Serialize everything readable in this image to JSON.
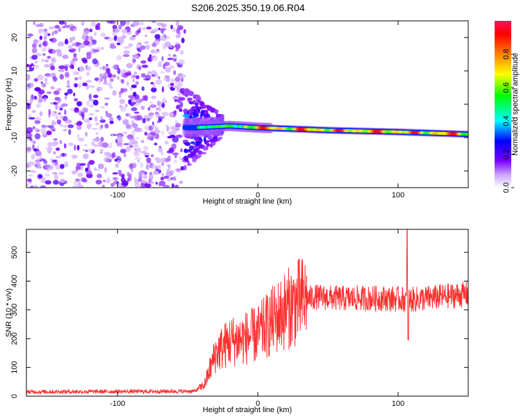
{
  "title": "S206.2025.350.19.06.R04",
  "chart_data": [
    {
      "type": "heatmap",
      "name": "spectrogram",
      "xlabel": "Height of straight line (km)",
      "ylabel": "Frequency (Hz)",
      "xlim": [
        -165,
        150
      ],
      "ylim": [
        -25,
        25
      ],
      "xticks": [
        -100,
        0,
        100
      ],
      "yticks": [
        -20,
        -10,
        0,
        10,
        20
      ],
      "xtick_labels": [
        "-100",
        "0",
        "100"
      ],
      "ytick_labels": [
        "-20",
        "-10",
        "0",
        "10",
        "20"
      ],
      "noise_region_x": [
        -165,
        -52
      ],
      "transition_region_x": [
        -52,
        -25
      ],
      "carrier_line": [
        {
          "x": -45,
          "f": -7.0
        },
        {
          "x": -20,
          "f": -6.5
        },
        {
          "x": 0,
          "f": -7.0
        },
        {
          "x": 50,
          "f": -7.8
        },
        {
          "x": 100,
          "f": -8.3
        },
        {
          "x": 150,
          "f": -9.0
        }
      ],
      "colorbar": {
        "label": "Normalized spectral amplitude",
        "range": [
          0,
          1
        ],
        "ticks": [
          0.0,
          0.2,
          0.4,
          0.6,
          0.8
        ],
        "tick_labels": [
          "0.0",
          "0.2",
          "0.4",
          "0.6",
          "0.8"
        ],
        "colors": [
          "#ffffff",
          "#7a00ff",
          "#0000ff",
          "#00ffff",
          "#00ff00",
          "#ffff00",
          "#ff8000",
          "#ff0000",
          "#ff1060"
        ]
      }
    },
    {
      "type": "line",
      "name": "snr",
      "xlabel": "Height of straight line (km)",
      "ylabel": "SNR (10 * v/v)",
      "xlim": [
        -165,
        150
      ],
      "ylim": [
        0,
        580
      ],
      "xticks": [
        -100,
        0,
        100
      ],
      "yticks": [
        0,
        100,
        200,
        300,
        400,
        500
      ],
      "xtick_labels": [
        "-100",
        "0",
        "100"
      ],
      "ytick_labels": [
        "0",
        "100",
        "200",
        "300",
        "400",
        "500"
      ],
      "color": "#ff3030",
      "trend": [
        {
          "x": -165,
          "y": 15
        },
        {
          "x": -45,
          "y": 17
        },
        {
          "x": -38,
          "y": 40
        },
        {
          "x": -30,
          "y": 150
        },
        {
          "x": -20,
          "y": 190
        },
        {
          "x": -10,
          "y": 200
        },
        {
          "x": 0,
          "y": 215
        },
        {
          "x": 10,
          "y": 260
        },
        {
          "x": 20,
          "y": 300
        },
        {
          "x": 30,
          "y": 330
        },
        {
          "x": 40,
          "y": 345
        },
        {
          "x": 60,
          "y": 340
        },
        {
          "x": 90,
          "y": 340
        },
        {
          "x": 110,
          "y": 335
        },
        {
          "x": 130,
          "y": 345
        },
        {
          "x": 150,
          "y": 355
        }
      ],
      "spikes": [
        {
          "x": 106.5,
          "y": 580
        },
        {
          "x": 107.2,
          "y": 195
        }
      ]
    }
  ]
}
